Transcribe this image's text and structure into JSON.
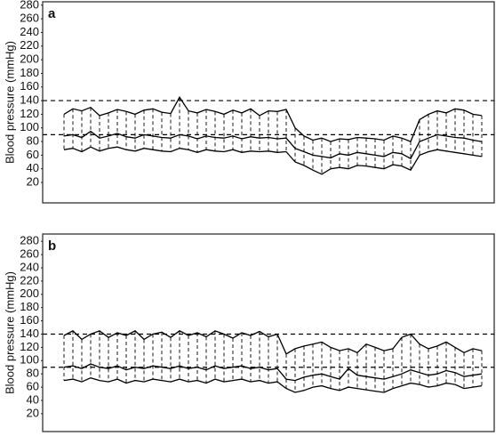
{
  "chart_data": [
    {
      "type": "line",
      "panel_label": "a",
      "y_label": "Blood pressure (mmHg)",
      "ylim": [
        -10,
        285
      ],
      "yticks": [
        20,
        40,
        60,
        80,
        100,
        120,
        140,
        160,
        180,
        200,
        220,
        240,
        260,
        280
      ],
      "hlines": [
        140,
        90
      ],
      "color": "#000000",
      "series": [
        {
          "color": "#000000",
          "values": [
            120,
            128,
            125,
            130,
            118,
            122,
            127,
            124,
            120,
            126,
            128,
            123,
            121,
            145,
            125,
            122,
            127,
            124,
            120,
            126,
            122,
            128,
            118,
            125,
            124,
            127,
            100,
            88,
            82,
            85,
            80,
            84,
            83,
            86,
            85,
            84,
            82,
            88,
            85,
            80,
            112,
            120,
            125,
            122,
            128,
            126,
            120,
            118
          ]
        },
        {
          "color": "#000000",
          "values": [
            88,
            90,
            86,
            95,
            85,
            88,
            92,
            87,
            85,
            90,
            88,
            86,
            85,
            90,
            88,
            84,
            88,
            86,
            85,
            88,
            84,
            87,
            85,
            86,
            84,
            85,
            70,
            65,
            60,
            58,
            56,
            62,
            60,
            64,
            62,
            60,
            58,
            64,
            62,
            55,
            80,
            85,
            90,
            88,
            86,
            85,
            82,
            80
          ]
        },
        {
          "color": "#000000",
          "values": [
            68,
            70,
            65,
            72,
            66,
            70,
            72,
            68,
            66,
            70,
            68,
            66,
            65,
            70,
            68,
            64,
            68,
            66,
            65,
            68,
            64,
            66,
            65,
            66,
            64,
            65,
            50,
            45,
            38,
            32,
            40,
            42,
            40,
            45,
            44,
            42,
            40,
            46,
            44,
            38,
            60,
            65,
            68,
            66,
            64,
            62,
            60,
            58
          ]
        }
      ]
    },
    {
      "type": "line",
      "panel_label": "b",
      "y_label": "Blood pressure (mmHg)",
      "ylim": [
        -7,
        291
      ],
      "yticks": [
        20,
        40,
        60,
        80,
        100,
        120,
        140,
        160,
        180,
        200,
        220,
        240,
        260,
        280
      ],
      "hlines": [
        140,
        90
      ],
      "color": "#000000",
      "series": [
        {
          "color": "#000000",
          "values": [
            138,
            145,
            132,
            140,
            145,
            135,
            142,
            138,
            145,
            132,
            140,
            143,
            135,
            145,
            138,
            142,
            136,
            145,
            140,
            134,
            142,
            138,
            144,
            136,
            140,
            110,
            118,
            122,
            125,
            128,
            120,
            115,
            118,
            112,
            125,
            120,
            115,
            118,
            135,
            140,
            125,
            118,
            122,
            128,
            120,
            112,
            118,
            115
          ]
        },
        {
          "color": "#000000",
          "values": [
            90,
            92,
            88,
            95,
            90,
            88,
            92,
            86,
            90,
            88,
            92,
            90,
            88,
            92,
            88,
            90,
            86,
            92,
            88,
            90,
            92,
            88,
            90,
            86,
            88,
            72,
            70,
            75,
            78,
            80,
            76,
            72,
            88,
            78,
            76,
            74,
            72,
            76,
            80,
            86,
            82,
            78,
            80,
            85,
            82,
            76,
            78,
            80
          ]
        },
        {
          "color": "#000000",
          "values": [
            70,
            72,
            68,
            74,
            70,
            68,
            72,
            66,
            70,
            68,
            72,
            70,
            68,
            72,
            68,
            70,
            66,
            72,
            68,
            70,
            72,
            68,
            70,
            66,
            68,
            58,
            52,
            55,
            60,
            62,
            58,
            55,
            60,
            58,
            56,
            54,
            52,
            58,
            62,
            66,
            64,
            60,
            62,
            66,
            64,
            58,
            60,
            62
          ]
        }
      ]
    }
  ]
}
